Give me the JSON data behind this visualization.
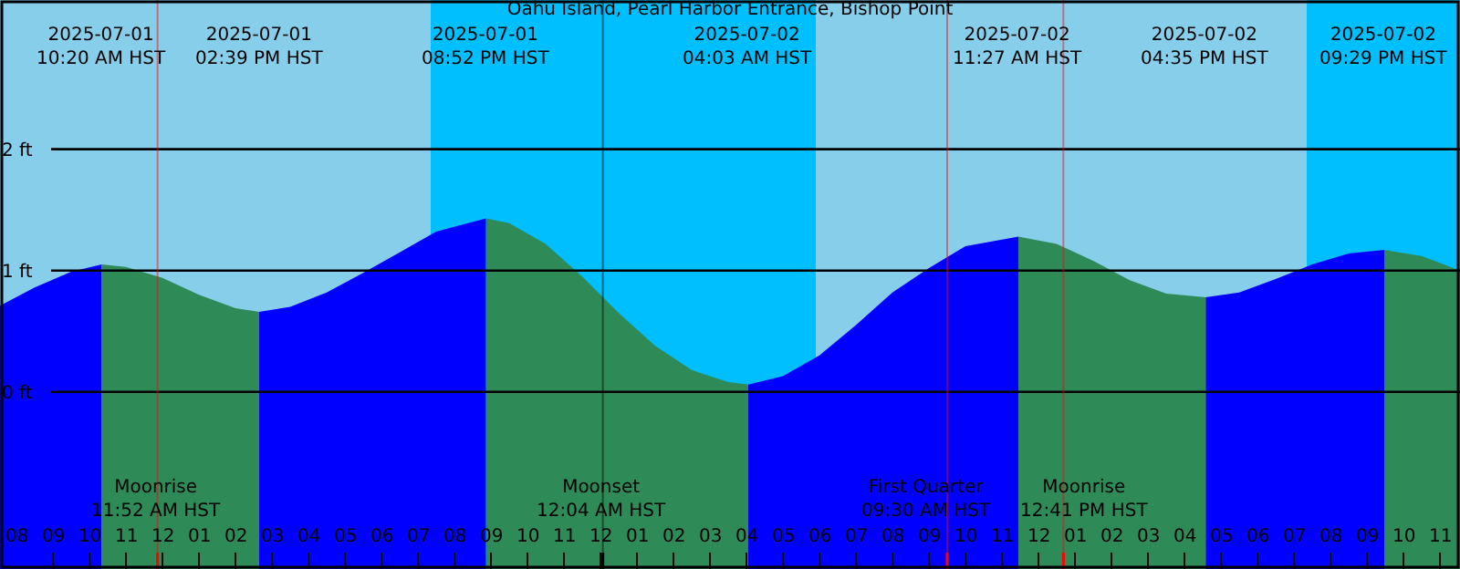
{
  "chart_data": {
    "type": "area",
    "title": "Oahu Island, Pearl Harbor Entrance, Bishop Point",
    "xlim": [
      "2025-07-01T07:33",
      "2025-07-02T23:33"
    ],
    "ylim": [
      -1.46,
      3.23
    ],
    "yticks": [
      {
        "value": 0,
        "label": "0 ft"
      },
      {
        "value": 1,
        "label": "1 ft"
      },
      {
        "value": 2,
        "label": "2 ft"
      }
    ],
    "xticks": [
      {
        "value": "2025-07-01T08:00",
        "label": "08"
      },
      {
        "value": "2025-07-01T09:00",
        "label": "09"
      },
      {
        "value": "2025-07-01T10:00",
        "label": "10"
      },
      {
        "value": "2025-07-01T11:00",
        "label": "11"
      },
      {
        "value": "2025-07-01T12:00",
        "label": "12"
      },
      {
        "value": "2025-07-01T13:00",
        "label": "01"
      },
      {
        "value": "2025-07-01T14:00",
        "label": "02"
      },
      {
        "value": "2025-07-01T15:00",
        "label": "03"
      },
      {
        "value": "2025-07-01T16:00",
        "label": "04"
      },
      {
        "value": "2025-07-01T17:00",
        "label": "05"
      },
      {
        "value": "2025-07-01T18:00",
        "label": "06"
      },
      {
        "value": "2025-07-01T19:00",
        "label": "07"
      },
      {
        "value": "2025-07-01T20:00",
        "label": "08"
      },
      {
        "value": "2025-07-01T21:00",
        "label": "09"
      },
      {
        "value": "2025-07-01T22:00",
        "label": "10"
      },
      {
        "value": "2025-07-01T23:00",
        "label": "11"
      },
      {
        "value": "2025-07-02T00:00",
        "label": "12"
      },
      {
        "value": "2025-07-02T01:00",
        "label": "01"
      },
      {
        "value": "2025-07-02T02:00",
        "label": "02"
      },
      {
        "value": "2025-07-02T03:00",
        "label": "03"
      },
      {
        "value": "2025-07-02T04:00",
        "label": "04"
      },
      {
        "value": "2025-07-02T05:00",
        "label": "05"
      },
      {
        "value": "2025-07-02T06:00",
        "label": "06"
      },
      {
        "value": "2025-07-02T07:00",
        "label": "07"
      },
      {
        "value": "2025-07-02T08:00",
        "label": "08"
      },
      {
        "value": "2025-07-02T09:00",
        "label": "09"
      },
      {
        "value": "2025-07-02T10:00",
        "label": "10"
      },
      {
        "value": "2025-07-02T11:00",
        "label": "11"
      },
      {
        "value": "2025-07-02T12:00",
        "label": "12"
      },
      {
        "value": "2025-07-02T13:00",
        "label": "01"
      },
      {
        "value": "2025-07-02T14:00",
        "label": "02"
      },
      {
        "value": "2025-07-02T15:00",
        "label": "03"
      },
      {
        "value": "2025-07-02T16:00",
        "label": "04"
      },
      {
        "value": "2025-07-02T17:00",
        "label": "05"
      },
      {
        "value": "2025-07-02T18:00",
        "label": "06"
      },
      {
        "value": "2025-07-02T19:00",
        "label": "07"
      },
      {
        "value": "2025-07-02T20:00",
        "label": "08"
      },
      {
        "value": "2025-07-02T21:00",
        "label": "09"
      },
      {
        "value": "2025-07-02T22:00",
        "label": "10"
      },
      {
        "value": "2025-07-02T23:00",
        "label": "11"
      }
    ],
    "grid": "y",
    "bands": [
      {
        "axis": "x",
        "from": "2025-07-01T07:33",
        "to": "2025-07-01T19:21",
        "color": "#87ceeb"
      },
      {
        "axis": "x",
        "from": "2025-07-01T19:21",
        "to": "2025-07-02T05:54",
        "color": "#00bfff"
      },
      {
        "axis": "x",
        "from": "2025-07-02T05:54",
        "to": "2025-07-02T19:21",
        "color": "#87ceeb"
      },
      {
        "axis": "x",
        "from": "2025-07-02T19:21",
        "to": "2025-07-02T23:33",
        "color": "#00bfff"
      }
    ],
    "ref_lines": [
      {
        "axis": "x",
        "value": "2025-07-01T11:52",
        "label": "Moonrise\n11:52 AM HST",
        "color": "#ff0000"
      },
      {
        "axis": "x",
        "value": "2025-07-02T00:04",
        "label": "Moonset\n12:04 AM HST",
        "color": "#000000"
      },
      {
        "axis": "x",
        "value": "2025-07-02T09:30",
        "label": "First Quarter\n09:30 AM HST",
        "color": "#ff0000"
      },
      {
        "axis": "x",
        "value": "2025-07-02T12:41",
        "label": "Moonrise\n12:41 PM HST",
        "color": "#ff0000"
      }
    ],
    "series": [
      {
        "color": "#0000ff",
        "x": [
          "2025-07-01T07:33",
          "2025-07-01T08:30",
          "2025-07-01T09:30",
          "2025-07-01T10:20"
        ],
        "values": [
          0.71,
          0.86,
          0.99,
          1.05
        ]
      },
      {
        "color": "#2e8b57",
        "x": [
          "2025-07-01T10:20",
          "2025-07-01T11:00",
          "2025-07-01T12:00",
          "2025-07-01T13:00",
          "2025-07-01T14:00",
          "2025-07-01T14:39"
        ],
        "values": [
          1.05,
          1.03,
          0.94,
          0.8,
          0.69,
          0.66
        ]
      },
      {
        "color": "#0000ff",
        "x": [
          "2025-07-01T14:39",
          "2025-07-01T15:30",
          "2025-07-01T16:30",
          "2025-07-01T17:30",
          "2025-07-01T18:30",
          "2025-07-01T19:30",
          "2025-07-01T20:52"
        ],
        "values": [
          0.66,
          0.7,
          0.82,
          0.98,
          1.15,
          1.32,
          1.43
        ]
      },
      {
        "color": "#2e8b57",
        "x": [
          "2025-07-01T20:52",
          "2025-07-01T21:30",
          "2025-07-01T22:30",
          "2025-07-01T23:30",
          "2025-07-02T00:30",
          "2025-07-02T01:30",
          "2025-07-02T02:30",
          "2025-07-02T03:30",
          "2025-07-02T04:03"
        ],
        "values": [
          1.43,
          1.39,
          1.22,
          0.95,
          0.65,
          0.38,
          0.18,
          0.08,
          0.06
        ]
      },
      {
        "color": "#0000ff",
        "x": [
          "2025-07-02T04:03",
          "2025-07-02T05:00",
          "2025-07-02T06:00",
          "2025-07-02T07:00",
          "2025-07-02T08:00",
          "2025-07-02T09:00",
          "2025-07-02T10:00",
          "2025-07-02T11:27"
        ],
        "values": [
          0.06,
          0.13,
          0.3,
          0.55,
          0.82,
          1.02,
          1.2,
          1.28
        ]
      },
      {
        "color": "#2e8b57",
        "x": [
          "2025-07-02T11:27",
          "2025-07-02T12:30",
          "2025-07-02T13:30",
          "2025-07-02T14:30",
          "2025-07-02T15:30",
          "2025-07-02T16:35"
        ],
        "values": [
          1.28,
          1.22,
          1.08,
          0.92,
          0.81,
          0.78
        ]
      },
      {
        "color": "#0000ff",
        "x": [
          "2025-07-02T16:35",
          "2025-07-02T17:30",
          "2025-07-02T18:30",
          "2025-07-02T19:30",
          "2025-07-02T20:30",
          "2025-07-02T21:29"
        ],
        "values": [
          0.78,
          0.82,
          0.93,
          1.05,
          1.14,
          1.17
        ]
      },
      {
        "color": "#2e8b57",
        "x": [
          "2025-07-02T21:29",
          "2025-07-02T22:30",
          "2025-07-02T23:33"
        ],
        "values": [
          1.17,
          1.12,
          1.0
        ]
      }
    ],
    "annotations": [
      "2025-07-01\n10:20 AM HST",
      "2025-07-01\n02:39 PM HST",
      "2025-07-01\n08:52 PM HST",
      "2025-07-02\n04:03 AM HST",
      "2025-07-02\n11:27 AM HST",
      "2025-07-02\n04:35 PM HST",
      "2025-07-02\n09:29 PM HST"
    ]
  }
}
